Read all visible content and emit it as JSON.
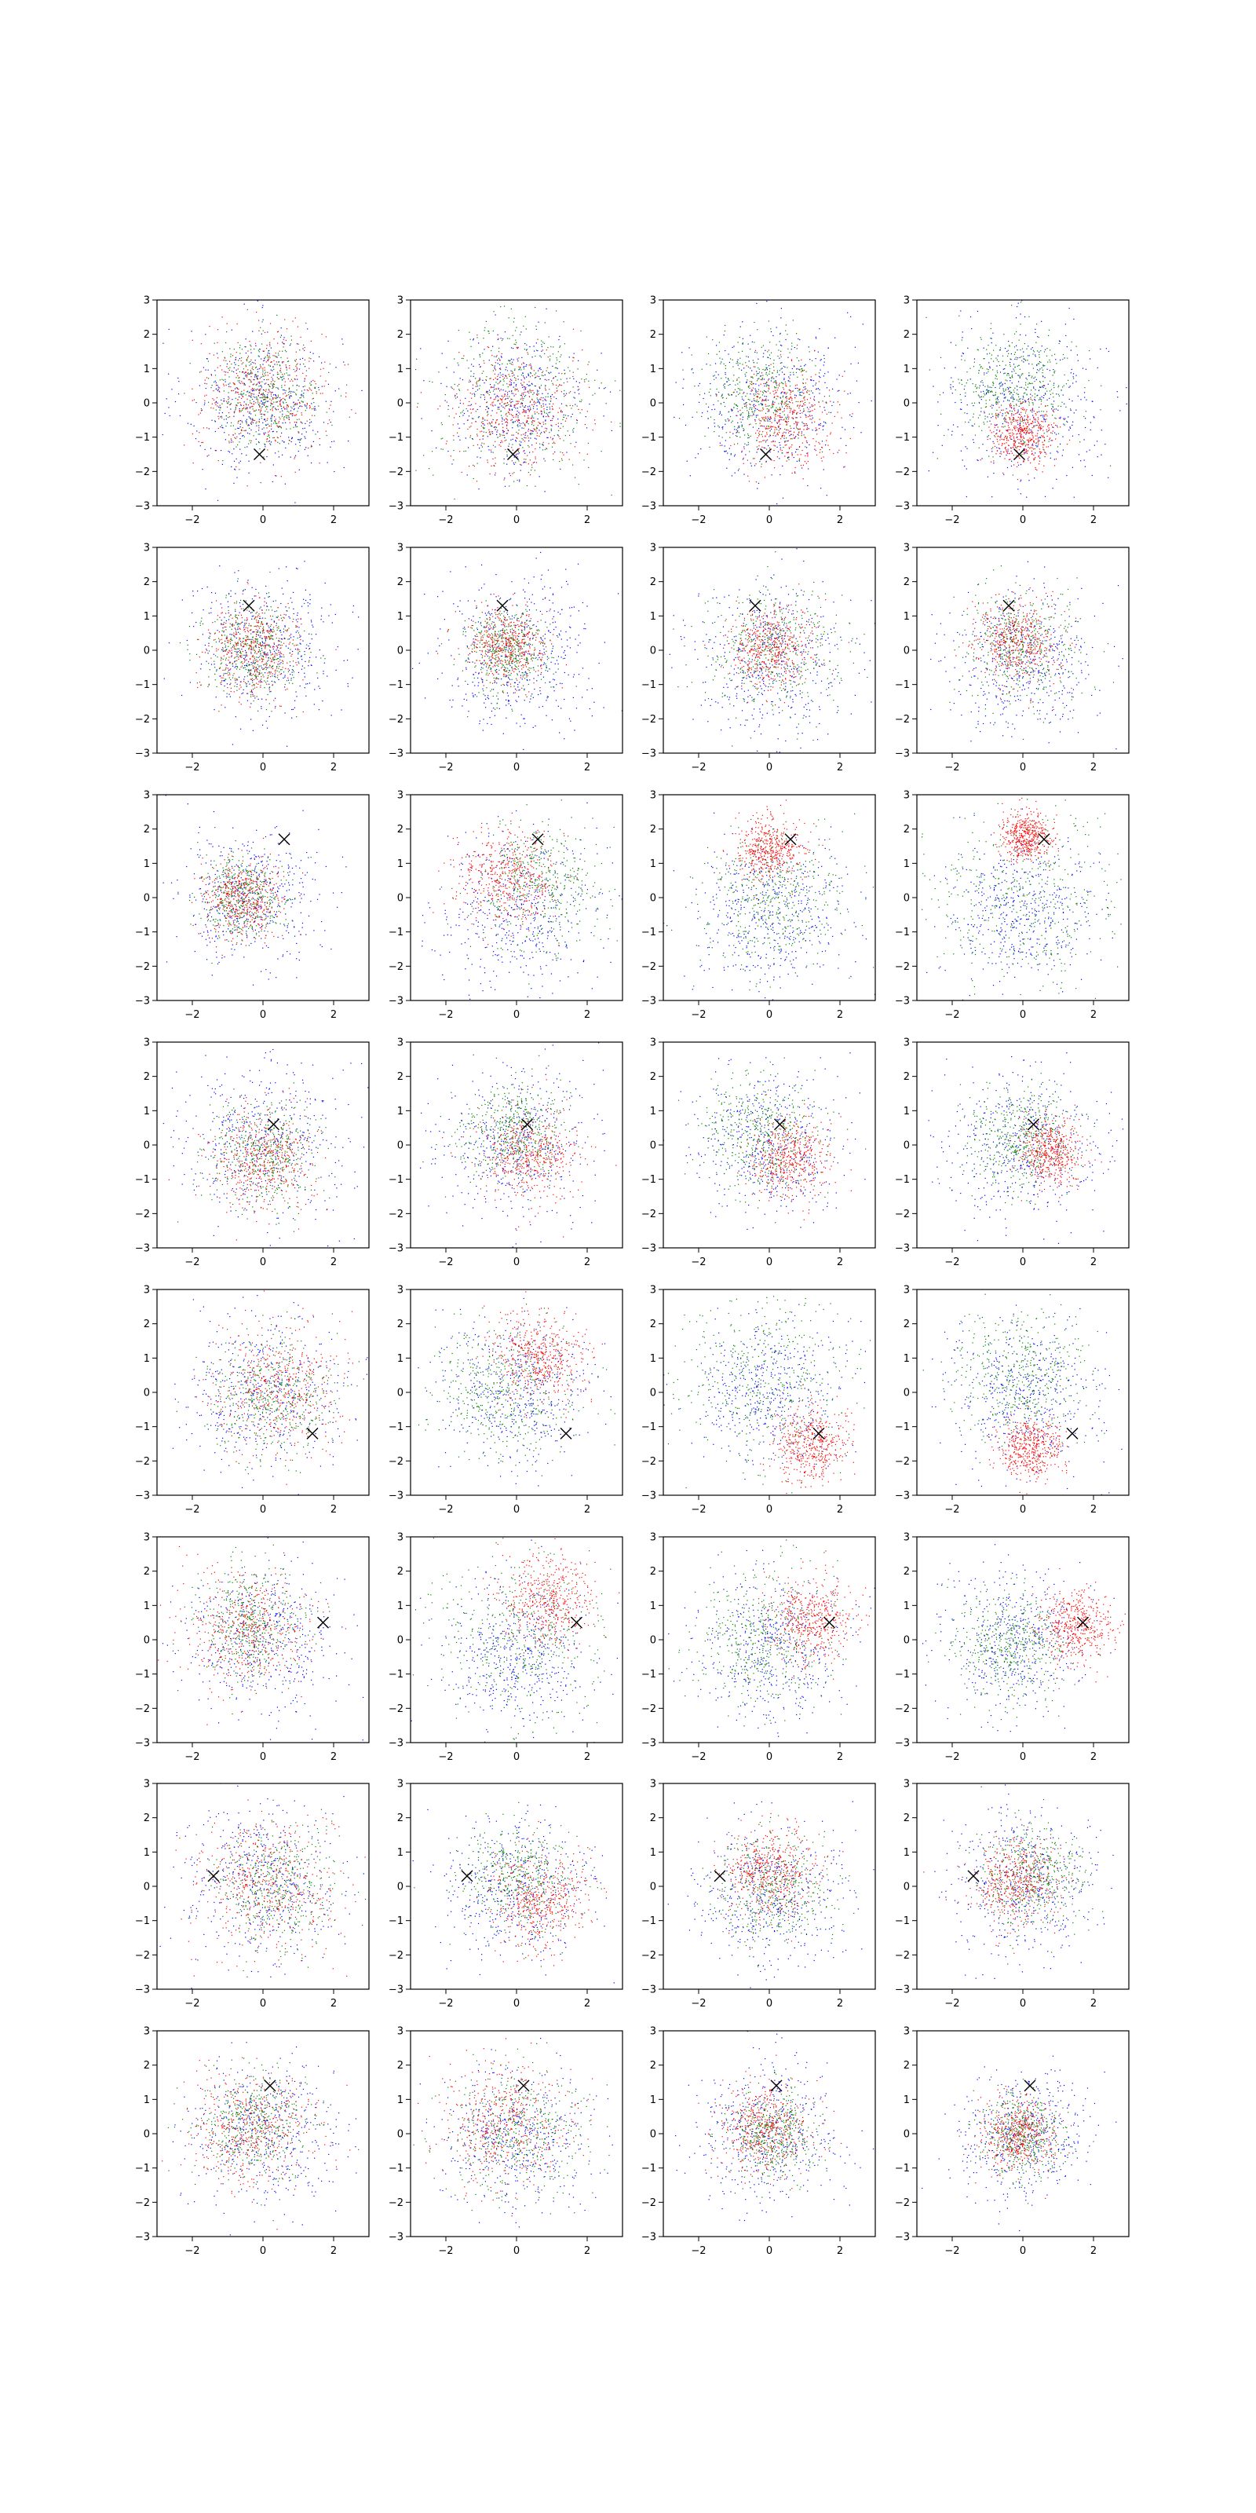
{
  "figure": {
    "rows": 8,
    "cols": 4,
    "axis": {
      "xlim": [
        -3,
        3
      ],
      "ylim": [
        -3,
        3
      ],
      "xticks": [
        -2,
        0,
        2
      ],
      "yticks": [
        -3,
        -2,
        -1,
        0,
        1,
        2,
        3
      ],
      "grid": false,
      "legend": "none"
    },
    "colors": {
      "blue": "#0000ff",
      "green": "#008000",
      "red": "#ff0000",
      "marker": "#000000"
    },
    "points_per_color": 450,
    "marker_symbol": "x"
  },
  "chart_data": [
    {
      "type": "scatter",
      "row": 1,
      "col": 1,
      "marker": [
        -0.1,
        -1.5
      ],
      "clusters": {
        "blue": [
          0,
          0,
          1.1
        ],
        "green": [
          0.1,
          0.3,
          0.8
        ],
        "red": [
          0,
          0.3,
          0.9
        ]
      }
    },
    {
      "type": "scatter",
      "row": 1,
      "col": 2,
      "marker": [
        -0.1,
        -1.5
      ],
      "clusters": {
        "blue": [
          0,
          0,
          1.0
        ],
        "green": [
          0,
          0.1,
          1.25
        ],
        "red": [
          0,
          -0.2,
          0.85
        ]
      }
    },
    {
      "type": "scatter",
      "row": 1,
      "col": 3,
      "marker": [
        -0.1,
        -1.5
      ],
      "clusters": {
        "blue": [
          0,
          0,
          1.15
        ],
        "green": [
          -0.2,
          0.3,
          0.8
        ],
        "red": [
          0.5,
          -0.4,
          0.7
        ]
      }
    },
    {
      "type": "scatter",
      "row": 1,
      "col": 4,
      "marker": [
        -0.1,
        -1.5
      ],
      "clusters": {
        "blue": [
          0,
          0,
          1.15
        ],
        "green": [
          -0.2,
          0.4,
          0.85
        ],
        "red": [
          0,
          -0.9,
          0.45
        ]
      }
    },
    {
      "type": "scatter",
      "row": 2,
      "col": 1,
      "marker": [
        -0.4,
        1.3
      ],
      "clusters": {
        "blue": [
          0,
          0,
          1.05
        ],
        "green": [
          -0.3,
          0,
          0.7
        ],
        "red": [
          -0.3,
          0,
          0.65
        ]
      }
    },
    {
      "type": "scatter",
      "row": 2,
      "col": 2,
      "marker": [
        -0.4,
        1.3
      ],
      "clusters": {
        "blue": [
          0,
          0,
          1.1
        ],
        "green": [
          -0.3,
          0,
          0.6
        ],
        "red": [
          -0.3,
          0.1,
          0.55
        ]
      }
    },
    {
      "type": "scatter",
      "row": 2,
      "col": 3,
      "marker": [
        -0.4,
        1.3
      ],
      "clusters": {
        "blue": [
          0,
          -0.3,
          1.15
        ],
        "green": [
          0,
          0,
          0.95
        ],
        "red": [
          0,
          0.1,
          0.6
        ]
      }
    },
    {
      "type": "scatter",
      "row": 2,
      "col": 4,
      "marker": [
        -0.4,
        1.3
      ],
      "clusters": {
        "blue": [
          0,
          -0.4,
          1.05
        ],
        "green": [
          0,
          0.1,
          0.85
        ],
        "red": [
          -0.2,
          0.2,
          0.6
        ]
      }
    },
    {
      "type": "scatter",
      "row": 3,
      "col": 1,
      "marker": [
        0.6,
        1.7
      ],
      "clusters": {
        "blue": [
          -0.3,
          0,
          1.0
        ],
        "green": [
          -0.6,
          0,
          0.6
        ],
        "red": [
          -0.6,
          0,
          0.55
        ]
      }
    },
    {
      "type": "scatter",
      "row": 3,
      "col": 2,
      "marker": [
        0.6,
        1.7
      ],
      "clusters": {
        "blue": [
          0,
          -0.4,
          1.1
        ],
        "green": [
          0.6,
          0.3,
          0.9
        ],
        "red": [
          -0.3,
          0.6,
          0.7
        ]
      }
    },
    {
      "type": "scatter",
      "row": 3,
      "col": 3,
      "marker": [
        0.6,
        1.7
      ],
      "clusters": {
        "blue": [
          0,
          -0.5,
          1.1
        ],
        "green": [
          0,
          0,
          1.0
        ],
        "red": [
          0,
          1.4,
          0.45
        ]
      }
    },
    {
      "type": "scatter",
      "row": 3,
      "col": 4,
      "marker": [
        0.6,
        1.7
      ],
      "clusters": {
        "blue": [
          0,
          -0.5,
          1.05
        ],
        "green": [
          0,
          0,
          1.35
        ],
        "red": [
          0.1,
          1.8,
          0.35
        ]
      }
    },
    {
      "type": "scatter",
      "row": 4,
      "col": 1,
      "marker": [
        0.3,
        0.6
      ],
      "clusters": {
        "blue": [
          0,
          0,
          1.15
        ],
        "green": [
          0,
          -0.3,
          0.8
        ],
        "red": [
          0,
          -0.4,
          0.75
        ]
      }
    },
    {
      "type": "scatter",
      "row": 4,
      "col": 2,
      "marker": [
        0.3,
        0.6
      ],
      "clusters": {
        "blue": [
          0,
          0,
          1.05
        ],
        "green": [
          0,
          0.4,
          0.75
        ],
        "red": [
          0.4,
          -0.3,
          0.65
        ]
      }
    },
    {
      "type": "scatter",
      "row": 4,
      "col": 3,
      "marker": [
        0.3,
        0.6
      ],
      "clusters": {
        "blue": [
          0,
          0,
          1.1
        ],
        "green": [
          -0.2,
          0.3,
          0.8
        ],
        "red": [
          0.6,
          -0.4,
          0.55
        ]
      }
    },
    {
      "type": "scatter",
      "row": 4,
      "col": 4,
      "marker": [
        0.3,
        0.6
      ],
      "clusters": {
        "blue": [
          0,
          0,
          1.1
        ],
        "green": [
          -0.1,
          0.2,
          0.75
        ],
        "red": [
          0.8,
          -0.2,
          0.45
        ]
      }
    },
    {
      "type": "scatter",
      "row": 5,
      "col": 1,
      "marker": [
        1.4,
        -1.2
      ],
      "clusters": {
        "blue": [
          0,
          0,
          1.15
        ],
        "green": [
          0.3,
          -0.1,
          0.9
        ],
        "red": [
          0.4,
          0.1,
          0.85
        ]
      }
    },
    {
      "type": "scatter",
      "row": 5,
      "col": 2,
      "marker": [
        1.4,
        -1.2
      ],
      "clusters": {
        "blue": [
          0,
          0,
          1.1
        ],
        "green": [
          -0.3,
          0.1,
          1.0
        ],
        "red": [
          0.6,
          1.0,
          0.65
        ]
      }
    },
    {
      "type": "scatter",
      "row": 5,
      "col": 3,
      "marker": [
        1.4,
        -1.2
      ],
      "clusters": {
        "blue": [
          0,
          0,
          1.1
        ],
        "green": [
          -0.2,
          0.4,
          1.3
        ],
        "red": [
          1.2,
          -1.5,
          0.55
        ]
      }
    },
    {
      "type": "scatter",
      "row": 5,
      "col": 4,
      "marker": [
        1.4,
        -1.2
      ],
      "clusters": {
        "blue": [
          0,
          0,
          1.1
        ],
        "green": [
          0,
          0.5,
          1.0
        ],
        "red": [
          0.2,
          -1.6,
          0.45
        ]
      }
    },
    {
      "type": "scatter",
      "row": 6,
      "col": 1,
      "marker": [
        1.7,
        0.5
      ],
      "clusters": {
        "blue": [
          0,
          0,
          1.1
        ],
        "green": [
          -0.4,
          0.4,
          0.8
        ],
        "red": [
          -0.4,
          0.3,
          0.85
        ]
      }
    },
    {
      "type": "scatter",
      "row": 6,
      "col": 2,
      "marker": [
        1.7,
        0.5
      ],
      "clusters": {
        "blue": [
          0,
          -0.5,
          1.05
        ],
        "green": [
          0,
          0,
          1.2
        ],
        "red": [
          0.9,
          1.2,
          0.65
        ]
      }
    },
    {
      "type": "scatter",
      "row": 6,
      "col": 3,
      "marker": [
        1.7,
        0.5
      ],
      "clusters": {
        "blue": [
          0,
          -0.3,
          1.05
        ],
        "green": [
          -0.2,
          0,
          1.0
        ],
        "red": [
          1.2,
          0.6,
          0.6
        ]
      }
    },
    {
      "type": "scatter",
      "row": 6,
      "col": 4,
      "marker": [
        1.7,
        0.5
      ],
      "clusters": {
        "blue": [
          -0.2,
          0,
          1.05
        ],
        "green": [
          -0.3,
          -0.2,
          0.8
        ],
        "red": [
          1.5,
          0.4,
          0.5
        ]
      }
    },
    {
      "type": "scatter",
      "row": 7,
      "col": 1,
      "marker": [
        -1.4,
        0.3
      ],
      "clusters": {
        "blue": [
          0,
          0,
          1.15
        ],
        "green": [
          0.4,
          0,
          0.85
        ],
        "red": [
          0.1,
          0,
          0.95
        ]
      }
    },
    {
      "type": "scatter",
      "row": 7,
      "col": 2,
      "marker": [
        -1.4,
        0.3
      ],
      "clusters": {
        "blue": [
          0,
          0,
          1.05
        ],
        "green": [
          0,
          0.2,
          0.8
        ],
        "red": [
          0.7,
          -0.4,
          0.7
        ]
      }
    },
    {
      "type": "scatter",
      "row": 7,
      "col": 3,
      "marker": [
        -1.4,
        0.3
      ],
      "clusters": {
        "blue": [
          0,
          -0.3,
          1.05
        ],
        "green": [
          0.1,
          0,
          0.8
        ],
        "red": [
          0,
          0.4,
          0.65
        ]
      }
    },
    {
      "type": "scatter",
      "row": 7,
      "col": 4,
      "marker": [
        -1.4,
        0.3
      ],
      "clusters": {
        "blue": [
          0,
          0,
          1.05
        ],
        "green": [
          0.3,
          0.3,
          0.75
        ],
        "red": [
          -0.2,
          0.1,
          0.6
        ]
      }
    },
    {
      "type": "scatter",
      "row": 8,
      "col": 1,
      "marker": [
        0.2,
        1.4
      ],
      "clusters": {
        "blue": [
          0,
          0,
          1.1
        ],
        "green": [
          -0.3,
          0.2,
          0.8
        ],
        "red": [
          -0.3,
          0.1,
          0.85
        ]
      }
    },
    {
      "type": "scatter",
      "row": 8,
      "col": 2,
      "marker": [
        0.2,
        1.4
      ],
      "clusters": {
        "blue": [
          0,
          0,
          1.05
        ],
        "green": [
          0,
          0,
          0.95
        ],
        "red": [
          -0.3,
          0.3,
          0.9
        ]
      }
    },
    {
      "type": "scatter",
      "row": 8,
      "col": 3,
      "marker": [
        0.2,
        1.4
      ],
      "clusters": {
        "blue": [
          0,
          0,
          1.05
        ],
        "green": [
          0.1,
          0,
          0.6
        ],
        "red": [
          -0.1,
          0.2,
          0.65
        ]
      }
    },
    {
      "type": "scatter",
      "row": 8,
      "col": 4,
      "marker": [
        0.2,
        1.4
      ],
      "clusters": {
        "blue": [
          0,
          0,
          0.95
        ],
        "green": [
          0,
          0,
          0.6
        ],
        "red": [
          -0.1,
          0,
          0.55
        ]
      }
    }
  ]
}
